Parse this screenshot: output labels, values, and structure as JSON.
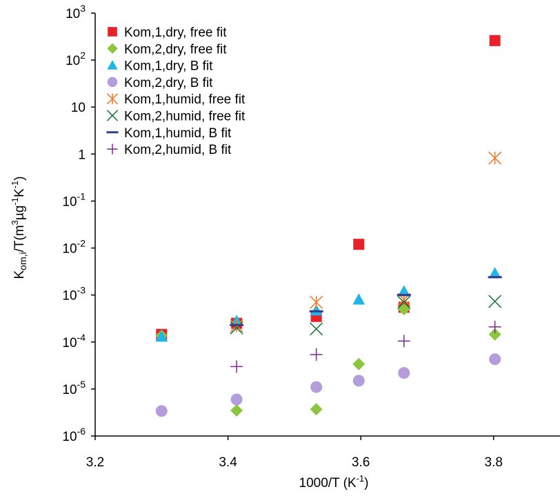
{
  "chart_data": {
    "type": "scatter",
    "title": "",
    "xlabel": {
      "base": "1000/T (K",
      "sup": "-1",
      "tail": ")"
    },
    "ylabel": {
      "k": "K",
      "sub": "om,i",
      "p1": "/T(m",
      "s1": "3",
      "p2": "µg",
      "s2": "-1",
      "p3": "K",
      "s3": "-1",
      "p4": ")"
    },
    "xlim": [
      3.2,
      3.9
    ],
    "ylim": [
      1e-06,
      1000
    ],
    "y_scale": "log",
    "grid": false,
    "legend_position": "top-left",
    "x_ticks": [
      {
        "value": 3.2,
        "label": "3.2"
      },
      {
        "value": 3.4,
        "label": "3.4"
      },
      {
        "value": 3.6,
        "label": "3.6"
      },
      {
        "value": 3.8,
        "label": "3.8"
      }
    ],
    "y_ticks": [
      {
        "value": 1000,
        "base": "10",
        "sup": "3"
      },
      {
        "value": 100,
        "base": "10",
        "sup": "2"
      },
      {
        "value": 10,
        "base": "10",
        "sup": ""
      },
      {
        "value": 1,
        "base": "1",
        "sup": ""
      },
      {
        "value": 0.1,
        "base": "10",
        "sup": "-1"
      },
      {
        "value": 0.01,
        "base": "10",
        "sup": "-2"
      },
      {
        "value": 0.001,
        "base": "10",
        "sup": "-3"
      },
      {
        "value": 0.0001,
        "base": "10",
        "sup": "-4"
      },
      {
        "value": 1e-05,
        "base": "10",
        "sup": "-5"
      },
      {
        "value": 1e-06,
        "base": "10",
        "sup": "-6"
      }
    ],
    "series": [
      {
        "name": "Kom,1,dry, free fit",
        "marker": "square",
        "color": "#e8202a",
        "x": [
          3.3,
          3.413,
          3.533,
          3.597,
          3.665,
          3.802
        ],
        "y": [
          0.000145,
          0.00025,
          0.00035,
          0.012,
          0.00055,
          260
        ]
      },
      {
        "name": "Kom,2,dry, free fit",
        "marker": "diamond",
        "color": "#8cc63f",
        "x": [
          3.3,
          3.413,
          3.533,
          3.597,
          3.665,
          3.802
        ],
        "y": [
          0.000135,
          3.5e-06,
          3.7e-06,
          3.4e-05,
          0.0005,
          0.000145
        ]
      },
      {
        "name": "Kom,1,dry, B fit",
        "marker": "triangle",
        "color": "#22b5e8",
        "x": [
          3.3,
          3.413,
          3.533,
          3.597,
          3.665,
          3.802
        ],
        "y": [
          0.00013,
          0.00028,
          0.00047,
          0.0008,
          0.0012,
          0.0029
        ]
      },
      {
        "name": "Kom,2,dry, B fit",
        "marker": "circle",
        "color": "#b39ddb",
        "x": [
          3.3,
          3.413,
          3.533,
          3.597,
          3.665,
          3.802
        ],
        "y": [
          3.4e-06,
          6e-06,
          1.1e-05,
          1.5e-05,
          2.2e-05,
          4.3e-05
        ]
      },
      {
        "name": "Kom,1,humid, free fit",
        "marker": "asterisk",
        "color": "#f07b2e",
        "x": [
          3.413,
          3.533,
          3.665,
          3.802
        ],
        "y": [
          0.00022,
          0.0007,
          0.0008,
          0.82
        ]
      },
      {
        "name": "Kom,2,humid, free fit",
        "marker": "x",
        "color": "#1b7a3e",
        "x": [
          3.413,
          3.533,
          3.665,
          3.802
        ],
        "y": [
          0.0002,
          0.00019,
          0.0007,
          0.00073
        ]
      },
      {
        "name": "Kom,1,humid, B fit",
        "marker": "dash",
        "color": "#2e3d8f",
        "x": [
          3.413,
          3.533,
          3.665,
          3.802
        ],
        "y": [
          0.00023,
          0.00045,
          0.001,
          0.0024
        ]
      },
      {
        "name": "Kom,2,humid, B fit",
        "marker": "plus",
        "color": "#7a2a8c",
        "x": [
          3.413,
          3.533,
          3.665,
          3.802
        ],
        "y": [
          3e-05,
          5.4e-05,
          0.000105,
          0.00021
        ]
      }
    ]
  }
}
